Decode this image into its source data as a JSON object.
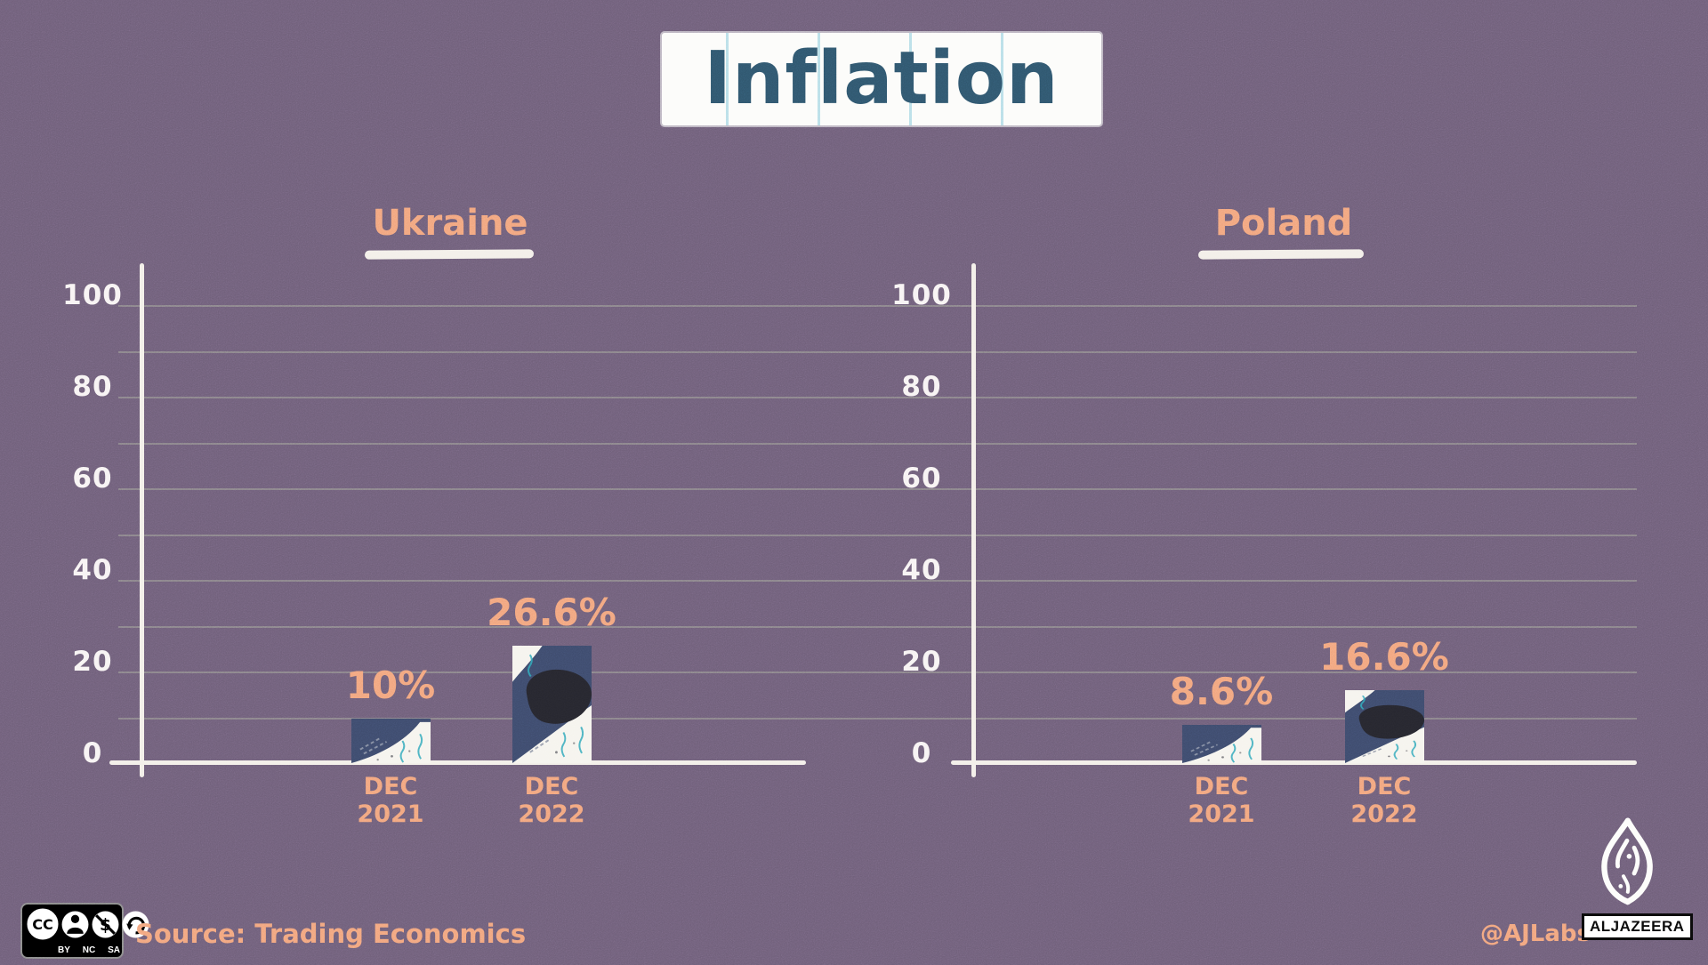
{
  "page": {
    "title": "Inflation"
  },
  "y_ticks": [
    0,
    20,
    40,
    60,
    80,
    100
  ],
  "charts": [
    {
      "country": "Ukraine",
      "bars": [
        {
          "category_line1": "DEC",
          "category_line2": "2021",
          "value": 10,
          "label": "10%"
        },
        {
          "category_line1": "DEC",
          "category_line2": "2022",
          "value": 26.6,
          "label": "26.6%"
        }
      ]
    },
    {
      "country": "Poland",
      "bars": [
        {
          "category_line1": "DEC",
          "category_line2": "2021",
          "value": 8.6,
          "label": "8.6%"
        },
        {
          "category_line1": "DEC",
          "category_line2": "2022",
          "value": 16.6,
          "label": "16.6%"
        }
      ]
    }
  ],
  "footer": {
    "source": "Source: Trading Economics",
    "handle": "@AJLabs",
    "brand": "ALJAZEERA",
    "license_logo": "CC",
    "license_labels": [
      "BY",
      "NC",
      "SA"
    ]
  },
  "colors": {
    "background": "#6e5e78",
    "accent_orange": "#f2a47c",
    "title_blue": "#2f556c",
    "bar_navy": "#3d4a6b",
    "bar_charcoal": "#26262e",
    "paper_white": "#f6f4ee"
  },
  "chart_data": [
    {
      "type": "bar",
      "title": "Ukraine",
      "categories": [
        "DEC 2021",
        "DEC 2022"
      ],
      "values": [
        10,
        26.6
      ],
      "data_labels": [
        "10%",
        "26.6%"
      ],
      "xlabel": "",
      "ylabel": "",
      "ylim": [
        0,
        100
      ],
      "yticks": [
        0,
        20,
        40,
        60,
        80,
        100
      ],
      "grid": true,
      "legend": false
    },
    {
      "type": "bar",
      "title": "Poland",
      "categories": [
        "DEC 2021",
        "DEC 2022"
      ],
      "values": [
        8.6,
        16.6
      ],
      "data_labels": [
        "8.6%",
        "16.6%"
      ],
      "xlabel": "",
      "ylabel": "",
      "ylim": [
        0,
        100
      ],
      "yticks": [
        0,
        20,
        40,
        60,
        80,
        100
      ],
      "grid": true,
      "legend": false
    }
  ]
}
